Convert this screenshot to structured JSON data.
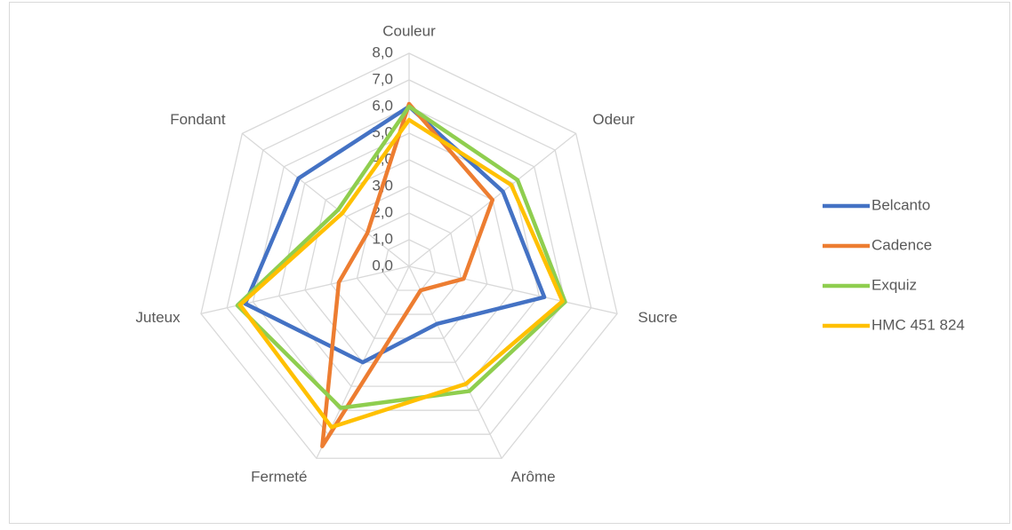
{
  "chart_data": {
    "type": "radar",
    "categories": [
      "Couleur",
      "Odeur",
      "Sucre",
      "Arôme",
      "Fermeté",
      "Juteux",
      "Fondant"
    ],
    "series": [
      {
        "name": "Belcanto",
        "color": "#4472c4",
        "values": [
          6.0,
          4.5,
          5.2,
          2.4,
          4.0,
          6.3,
          5.3
        ]
      },
      {
        "name": "Cadence",
        "color": "#ed7d31",
        "values": [
          6.1,
          4.0,
          2.1,
          1.0,
          7.5,
          2.7,
          2.0
        ]
      },
      {
        "name": "Exquiz",
        "color": "#8fce4f",
        "values": [
          6.0,
          5.2,
          6.0,
          5.2,
          5.9,
          6.6,
          3.4
        ]
      },
      {
        "name": "HMC 451 824",
        "color": "#ffc000",
        "values": [
          5.5,
          4.9,
          5.9,
          4.9,
          6.7,
          6.5,
          3.2
        ]
      }
    ],
    "ylim": [
      0,
      8
    ],
    "yticks": [
      {
        "value": 0,
        "label": "0,0"
      },
      {
        "value": 1,
        "label": "1,0"
      },
      {
        "value": 2,
        "label": "2,0"
      },
      {
        "value": 3,
        "label": "3,0"
      },
      {
        "value": 4,
        "label": "4,0"
      },
      {
        "value": 5,
        "label": "5,0"
      },
      {
        "value": 6,
        "label": "6,0"
      },
      {
        "value": 7,
        "label": "7,0"
      },
      {
        "value": 8,
        "label": "8,0"
      }
    ],
    "grid": true,
    "legend": "right"
  }
}
